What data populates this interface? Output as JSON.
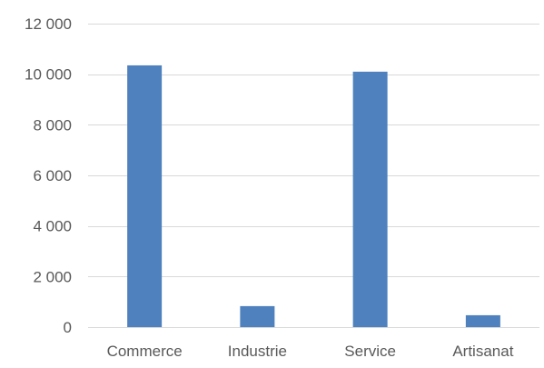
{
  "colors": {
    "bar": "#4e81bd",
    "grid": "#d9d9d9",
    "text": "#595959",
    "background": "#ffffff"
  },
  "chart_data": {
    "type": "bar",
    "categories": [
      "Commerce",
      "Industrie",
      "Service",
      "Artisanat"
    ],
    "values": [
      10350,
      830,
      10100,
      470
    ],
    "title": "",
    "xlabel": "",
    "ylabel": "",
    "ylim": [
      0,
      12000
    ],
    "yticks": [
      0,
      2000,
      4000,
      6000,
      8000,
      10000,
      12000
    ],
    "ytick_labels": [
      "0",
      "2 000",
      "4 000",
      "6 000",
      "8 000",
      "10 000",
      "12 000"
    ],
    "grid": "horizontal",
    "legend": "none"
  }
}
